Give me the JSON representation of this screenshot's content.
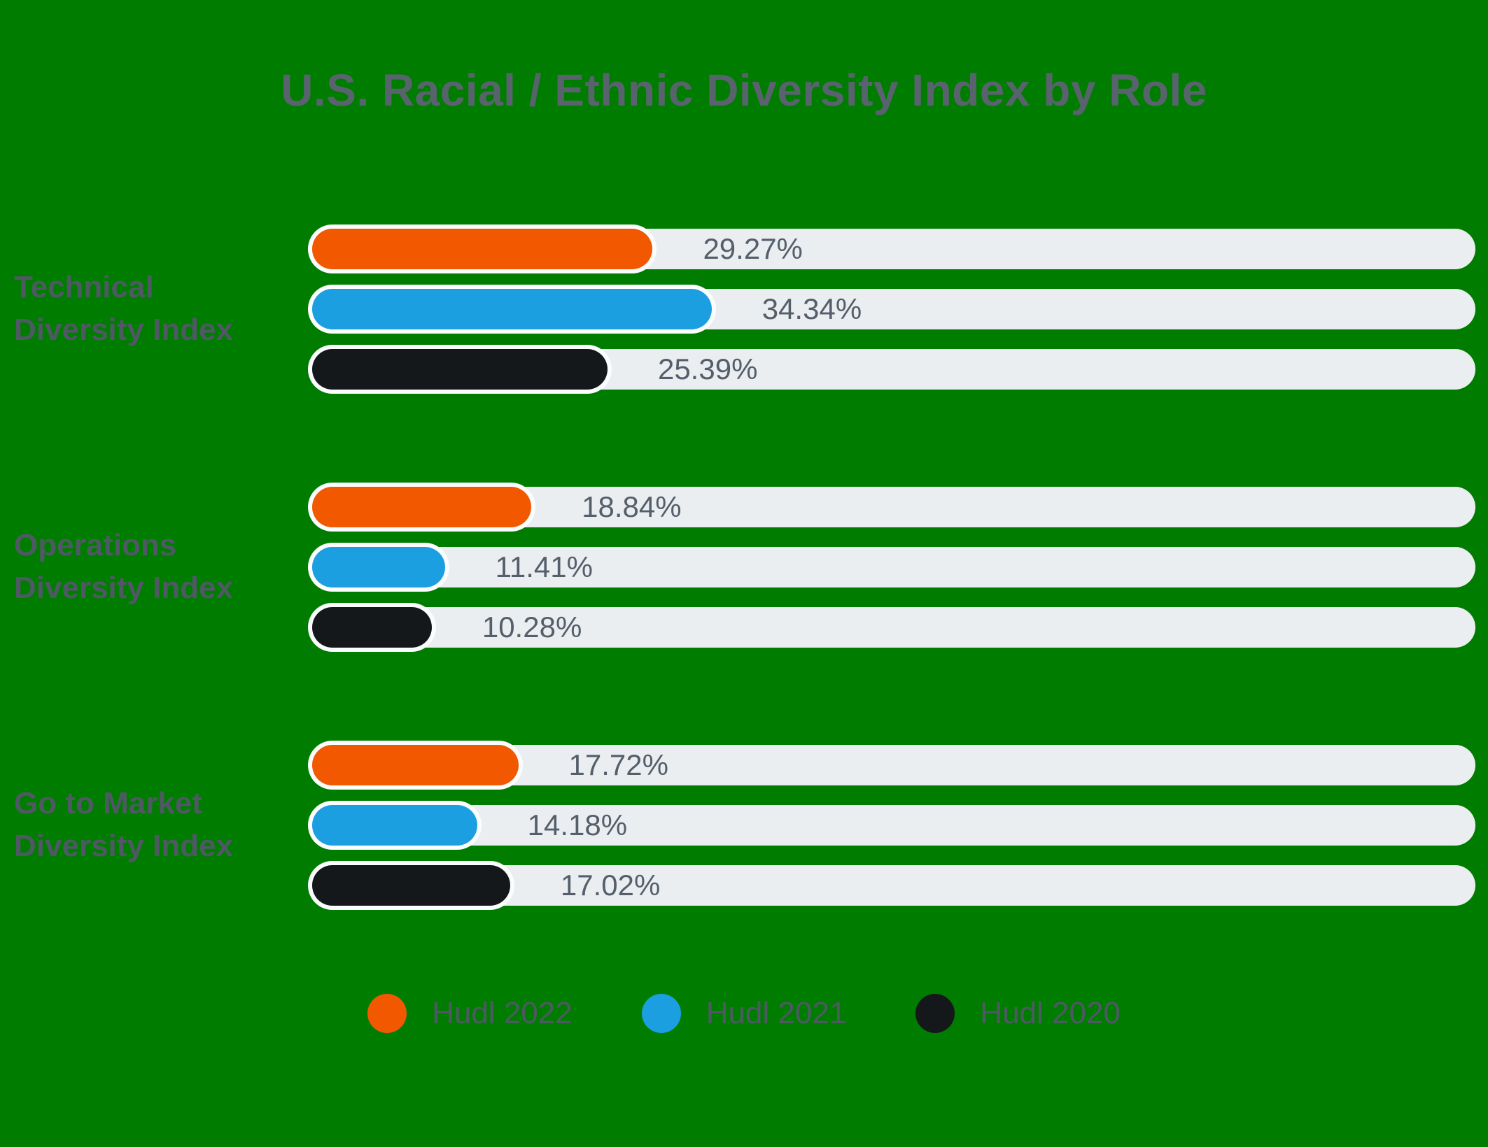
{
  "title": "U.S. Racial / Ethnic Diversity Index by Role",
  "colors": {
    "background": "#007D00",
    "bar_track": "#EBEEF0",
    "bar_ring": "#FBFCFE",
    "title_text": "#59636E",
    "category_text": "#4E5963",
    "value_text": "#545F6B",
    "hudl_2022": "#F25800",
    "hudl_2021": "#1C9FE0",
    "hudl_2020": "#15181B"
  },
  "chart_data": {
    "type": "bar",
    "orientation": "horizontal",
    "unit": "%",
    "xlim": [
      0,
      100
    ],
    "grid": false,
    "legend_position": "bottom",
    "title": "U.S. Racial / Ethnic Diversity Index by Role",
    "categories": [
      "Technical Diversity Index",
      "Operations Diversity Index",
      "Go to Market Diversity Index"
    ],
    "series": [
      {
        "name": "Hudl 2022",
        "color": "#F25800",
        "values": [
          29.27,
          18.84,
          17.72
        ]
      },
      {
        "name": "Hudl 2021",
        "color": "#1C9FE0",
        "values": [
          34.34,
          11.41,
          14.18
        ]
      },
      {
        "name": "Hudl 2020",
        "color": "#15181B",
        "values": [
          25.39,
          10.28,
          17.02
        ]
      }
    ],
    "groups": [
      {
        "label_line1": "Technical",
        "label_line2": "Diversity Index",
        "bars": [
          {
            "series": "Hudl 2022",
            "value": 29.27,
            "display": "29.27%"
          },
          {
            "series": "Hudl 2021",
            "value": 34.34,
            "display": "34.34%"
          },
          {
            "series": "Hudl 2020",
            "value": 25.39,
            "display": "25.39%"
          }
        ]
      },
      {
        "label_line1": "Operations",
        "label_line2": "Diversity Index",
        "bars": [
          {
            "series": "Hudl 2022",
            "value": 18.84,
            "display": "18.84%"
          },
          {
            "series": "Hudl 2021",
            "value": 11.41,
            "display": "11.41%"
          },
          {
            "series": "Hudl 2020",
            "value": 10.28,
            "display": "10.28%"
          }
        ]
      },
      {
        "label_line1": "Go to Market",
        "label_line2": "Diversity Index",
        "bars": [
          {
            "series": "Hudl 2022",
            "value": 17.72,
            "display": "17.72%"
          },
          {
            "series": "Hudl 2021",
            "value": 14.18,
            "display": "14.18%"
          },
          {
            "series": "Hudl 2020",
            "value": 17.02,
            "display": "17.02%"
          }
        ]
      }
    ],
    "legend": [
      {
        "label": "Hudl 2022",
        "color": "#F25800"
      },
      {
        "label": "Hudl 2021",
        "color": "#1C9FE0"
      },
      {
        "label": "Hudl 2020",
        "color": "#15181B"
      }
    ]
  }
}
